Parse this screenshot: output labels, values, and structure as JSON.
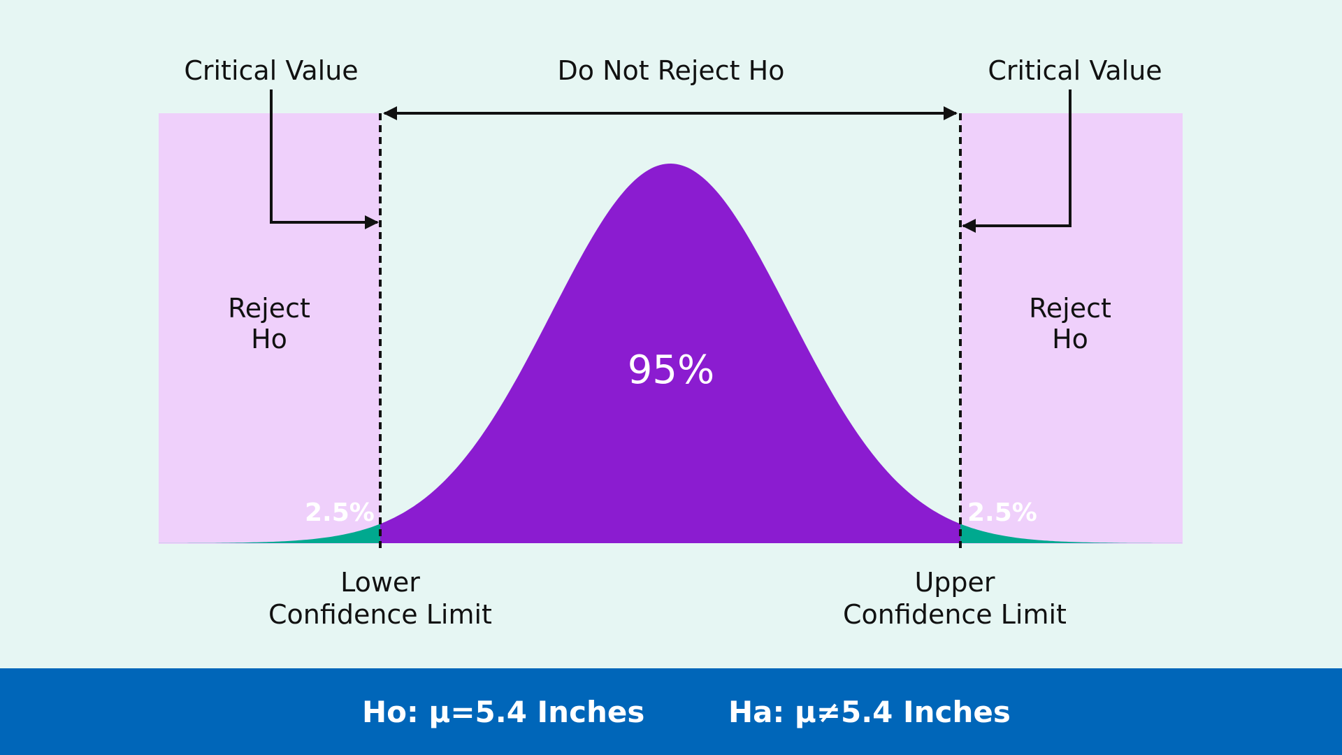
{
  "labels": {
    "critical_value_left": "Critical Value",
    "critical_value_right": "Critical Value",
    "do_not_reject": "Do Not Reject Ho",
    "reject_left_line1": "Reject",
    "reject_left_line2": "Ho",
    "reject_right_line1": "Reject",
    "reject_right_line2": "Ho",
    "center_percent": "95%",
    "tail_left_percent": "2.5%",
    "tail_right_percent": "2.5%",
    "lower_limit_line1": "Lower",
    "lower_limit_line2": "Confidence Limit",
    "upper_limit_line1": "Upper",
    "upper_limit_line2": "Confidence Limit"
  },
  "footer": {
    "null_hypothesis": "Ho: μ=5.4 Inches",
    "alt_hypothesis": "Ha: μ≠5.4 Inches"
  },
  "colors": {
    "background": "#e6f6f3",
    "reject_region": "#efd0fb",
    "center_area": "#8b1cd0",
    "tail_area": "#00a98f",
    "footer": "#0066b9"
  }
}
